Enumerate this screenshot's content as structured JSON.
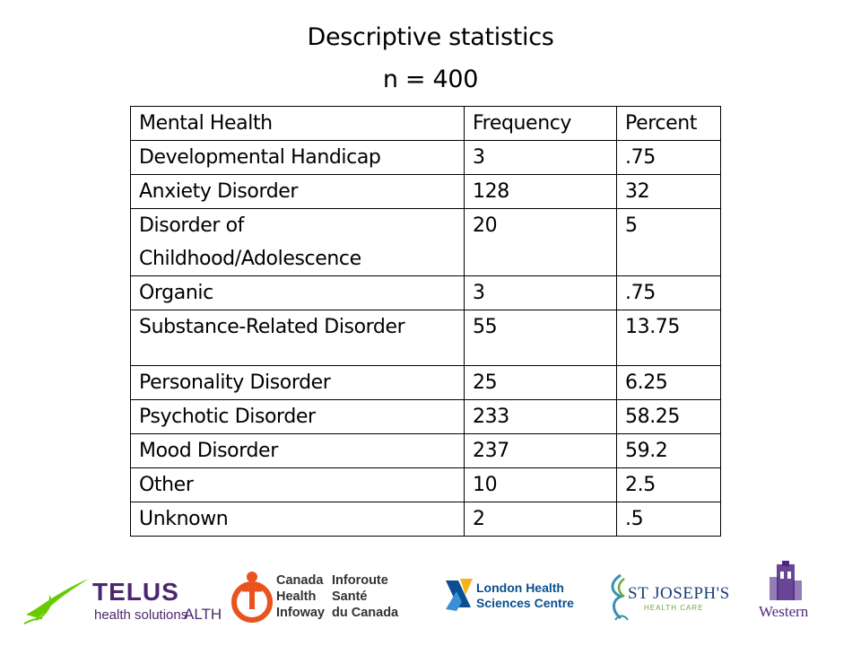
{
  "slide": {
    "title": "Descriptive statistics",
    "subtitle": "n = 400"
  },
  "table": {
    "headers": [
      "Mental Health",
      "Frequency",
      "Percent"
    ],
    "rows": [
      [
        "Developmental Handicap",
        "3",
        ".75"
      ],
      [
        "Anxiety Disorder",
        "128",
        "32"
      ],
      [
        "Disorder of Childhood/Adolescence",
        "20",
        "5"
      ],
      [
        "Organic",
        "3",
        ".75"
      ],
      [
        "Substance-Related Disorder",
        "55",
        "13.75"
      ],
      [
        "Personality Disorder",
        "25",
        "6.25"
      ],
      [
        "Psychotic Disorder",
        "233",
        "58.25"
      ],
      [
        "Mood Disorder",
        "237",
        "59.2"
      ],
      [
        "Other",
        "10",
        "2.5"
      ],
      [
        "Unknown",
        "2",
        ".5"
      ]
    ]
  },
  "logos": {
    "telus": {
      "word": "TELUS",
      "sub_prefix": "health solutions",
      "alth": "ALTH"
    },
    "infoway": {
      "en": [
        "Canada",
        "Health",
        "Infoway"
      ],
      "fr": [
        "Inforoute",
        "Santé",
        "du Canada"
      ]
    },
    "lhsc": {
      "lines": [
        "London Health",
        "Sciences Centre"
      ]
    },
    "stjo": {
      "name": "ST JOSEPH'S",
      "sub": "HEALTH CARE"
    },
    "western": {
      "name": "Western"
    },
    "colors": {
      "telus_purple": "#4b286d",
      "telus_green": "#66cc00",
      "infoway_orange": "#e8531e",
      "lhsc_blue": "#0a4f8f",
      "lhsc_yellow": "#f6b21a",
      "western_purple": "#4f2683"
    }
  }
}
